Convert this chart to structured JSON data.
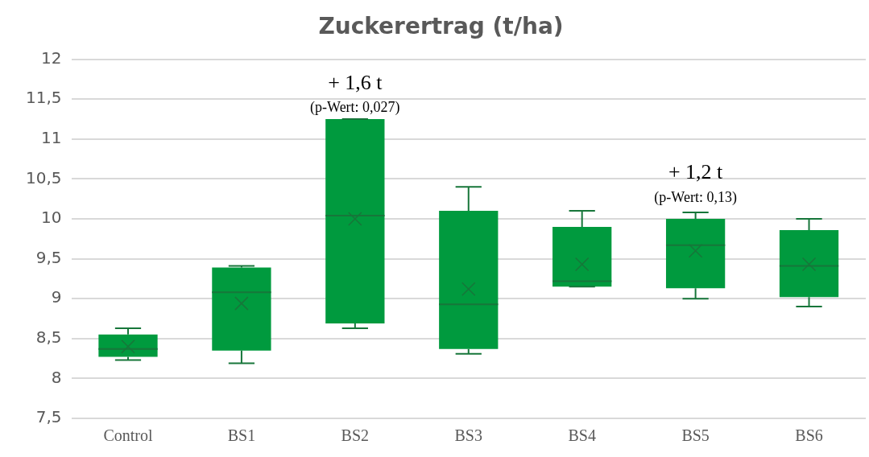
{
  "chart_data": {
    "type": "box",
    "title": "Zuckerertrag (t/ha)",
    "categories": [
      "Control",
      "BS1",
      "BS2",
      "BS3",
      "BS4",
      "BS5",
      "BS6"
    ],
    "color": "#009a3e",
    "boxes": [
      {
        "low": 8.23,
        "q1": 8.27,
        "median": 8.37,
        "q3": 8.55,
        "high": 8.63,
        "mean": 8.4
      },
      {
        "low": 8.19,
        "q1": 8.35,
        "median": 9.08,
        "q3": 9.39,
        "high": 9.41,
        "mean": 8.94
      },
      {
        "low": 8.63,
        "q1": 8.69,
        "median": 10.04,
        "q3": 11.25,
        "high": 11.25,
        "mean": 10.0
      },
      {
        "low": 8.31,
        "q1": 8.37,
        "median": 8.93,
        "q3": 10.1,
        "high": 10.4,
        "mean": 9.12
      },
      {
        "low": 9.15,
        "q1": 9.15,
        "median": 9.22,
        "q3": 9.9,
        "high": 10.1,
        "mean": 9.43
      },
      {
        "low": 9.0,
        "q1": 9.13,
        "median": 9.67,
        "q3": 10.0,
        "high": 10.08,
        "mean": 9.6
      },
      {
        "low": 8.9,
        "q1": 9.02,
        "median": 9.41,
        "q3": 9.86,
        "high": 10.0,
        "mean": 9.43
      }
    ],
    "ylim": [
      7.5,
      12
    ],
    "yticks": [
      {
        "value": 7.5,
        "label": "7,5"
      },
      8,
      {
        "value": 8.5,
        "label": "8,5"
      },
      9,
      {
        "value": 9.5,
        "label": "9,5"
      },
      10,
      {
        "value": 10.5,
        "label": "10,5"
      },
      11,
      {
        "value": 11.5,
        "label": "11,5"
      },
      12
    ],
    "grid": "y",
    "legend": false,
    "annotations": [
      "+ 1,6 t",
      "(p-Wert: 0,027)",
      "+ 1,2 t",
      "(p-Wert: 0,13)"
    ]
  }
}
